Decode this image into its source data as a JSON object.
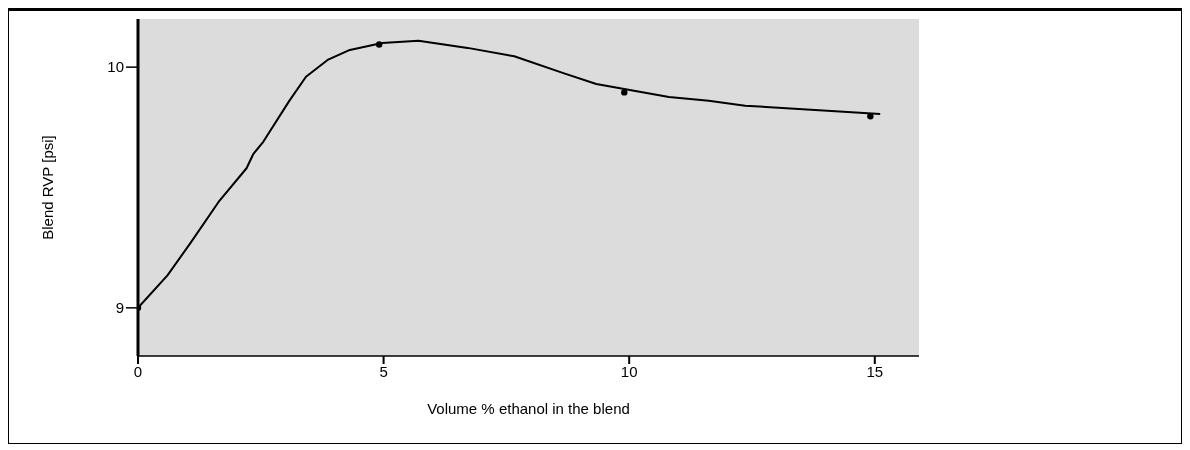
{
  "chart_data": {
    "type": "line",
    "xlabel": "Volume % ethanol in the blend",
    "ylabel": "Blend RVP [psi]",
    "xlim": [
      0,
      15.9
    ],
    "xticks": [
      0,
      5,
      10,
      15
    ],
    "ylim": [
      8.8,
      10.2
    ],
    "yticks": [
      9,
      10
    ],
    "grid": false,
    "series": [
      {
        "color": "#000000",
        "x": [
          0,
          0.6,
          1.07,
          1.64,
          2.21,
          2.35,
          2.55,
          3.08,
          3.42,
          3.86,
          4.29,
          4.97,
          5.71,
          6.71,
          7.66,
          8.66,
          9.33,
          10.81,
          11.62,
          12.36,
          15.11
        ],
        "values": [
          9.0,
          9.135,
          9.27,
          9.44,
          9.58,
          9.64,
          9.69,
          9.86,
          9.96,
          10.03,
          10.07,
          10.1,
          10.11,
          10.08,
          10.045,
          9.975,
          9.93,
          9.876,
          9.86,
          9.84,
          9.805
        ]
      },
      {
        "type": "scatter",
        "color": "#000000",
        "x": [
          0,
          4.91,
          9.9,
          14.91
        ],
        "values": [
          9.0,
          10.094,
          9.895,
          9.796
        ]
      }
    ]
  }
}
